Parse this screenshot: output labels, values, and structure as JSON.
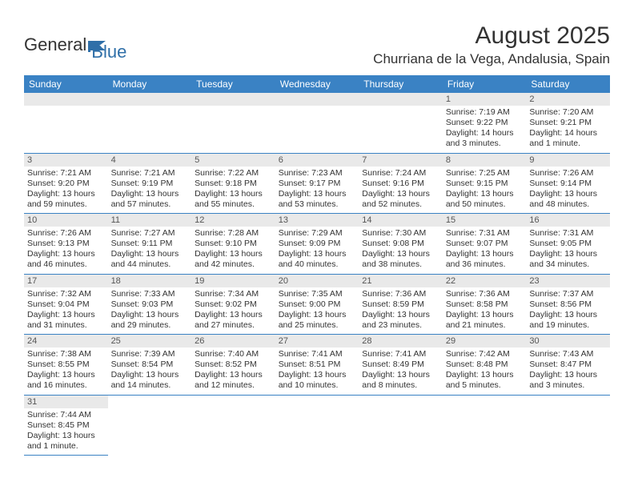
{
  "brand": {
    "name_part1": "General",
    "name_part2": "Blue"
  },
  "title": "August 2025",
  "location": "Churriana de la Vega, Andalusia, Spain",
  "colors": {
    "header_bg": "#3a82c4",
    "header_text": "#ffffff",
    "daynum_bg": "#e9e9e9",
    "border": "#3a82c4",
    "body_text": "#333333",
    "logo_blue": "#2f6fa8"
  },
  "typography": {
    "title_fontsize": 30,
    "location_fontsize": 17,
    "dow_fontsize": 12,
    "cell_fontsize": 10.5
  },
  "days_of_week": [
    "Sunday",
    "Monday",
    "Tuesday",
    "Wednesday",
    "Thursday",
    "Friday",
    "Saturday"
  ],
  "grid": {
    "leading_blanks": 5,
    "days": [
      {
        "n": 1,
        "sunrise": "7:19 AM",
        "sunset": "9:22 PM",
        "daylight": "14 hours and 3 minutes."
      },
      {
        "n": 2,
        "sunrise": "7:20 AM",
        "sunset": "9:21 PM",
        "daylight": "14 hours and 1 minute."
      },
      {
        "n": 3,
        "sunrise": "7:21 AM",
        "sunset": "9:20 PM",
        "daylight": "13 hours and 59 minutes."
      },
      {
        "n": 4,
        "sunrise": "7:21 AM",
        "sunset": "9:19 PM",
        "daylight": "13 hours and 57 minutes."
      },
      {
        "n": 5,
        "sunrise": "7:22 AM",
        "sunset": "9:18 PM",
        "daylight": "13 hours and 55 minutes."
      },
      {
        "n": 6,
        "sunrise": "7:23 AM",
        "sunset": "9:17 PM",
        "daylight": "13 hours and 53 minutes."
      },
      {
        "n": 7,
        "sunrise": "7:24 AM",
        "sunset": "9:16 PM",
        "daylight": "13 hours and 52 minutes."
      },
      {
        "n": 8,
        "sunrise": "7:25 AM",
        "sunset": "9:15 PM",
        "daylight": "13 hours and 50 minutes."
      },
      {
        "n": 9,
        "sunrise": "7:26 AM",
        "sunset": "9:14 PM",
        "daylight": "13 hours and 48 minutes."
      },
      {
        "n": 10,
        "sunrise": "7:26 AM",
        "sunset": "9:13 PM",
        "daylight": "13 hours and 46 minutes."
      },
      {
        "n": 11,
        "sunrise": "7:27 AM",
        "sunset": "9:11 PM",
        "daylight": "13 hours and 44 minutes."
      },
      {
        "n": 12,
        "sunrise": "7:28 AM",
        "sunset": "9:10 PM",
        "daylight": "13 hours and 42 minutes."
      },
      {
        "n": 13,
        "sunrise": "7:29 AM",
        "sunset": "9:09 PM",
        "daylight": "13 hours and 40 minutes."
      },
      {
        "n": 14,
        "sunrise": "7:30 AM",
        "sunset": "9:08 PM",
        "daylight": "13 hours and 38 minutes."
      },
      {
        "n": 15,
        "sunrise": "7:31 AM",
        "sunset": "9:07 PM",
        "daylight": "13 hours and 36 minutes."
      },
      {
        "n": 16,
        "sunrise": "7:31 AM",
        "sunset": "9:05 PM",
        "daylight": "13 hours and 34 minutes."
      },
      {
        "n": 17,
        "sunrise": "7:32 AM",
        "sunset": "9:04 PM",
        "daylight": "13 hours and 31 minutes."
      },
      {
        "n": 18,
        "sunrise": "7:33 AM",
        "sunset": "9:03 PM",
        "daylight": "13 hours and 29 minutes."
      },
      {
        "n": 19,
        "sunrise": "7:34 AM",
        "sunset": "9:02 PM",
        "daylight": "13 hours and 27 minutes."
      },
      {
        "n": 20,
        "sunrise": "7:35 AM",
        "sunset": "9:00 PM",
        "daylight": "13 hours and 25 minutes."
      },
      {
        "n": 21,
        "sunrise": "7:36 AM",
        "sunset": "8:59 PM",
        "daylight": "13 hours and 23 minutes."
      },
      {
        "n": 22,
        "sunrise": "7:36 AM",
        "sunset": "8:58 PM",
        "daylight": "13 hours and 21 minutes."
      },
      {
        "n": 23,
        "sunrise": "7:37 AM",
        "sunset": "8:56 PM",
        "daylight": "13 hours and 19 minutes."
      },
      {
        "n": 24,
        "sunrise": "7:38 AM",
        "sunset": "8:55 PM",
        "daylight": "13 hours and 16 minutes."
      },
      {
        "n": 25,
        "sunrise": "7:39 AM",
        "sunset": "8:54 PM",
        "daylight": "13 hours and 14 minutes."
      },
      {
        "n": 26,
        "sunrise": "7:40 AM",
        "sunset": "8:52 PM",
        "daylight": "13 hours and 12 minutes."
      },
      {
        "n": 27,
        "sunrise": "7:41 AM",
        "sunset": "8:51 PM",
        "daylight": "13 hours and 10 minutes."
      },
      {
        "n": 28,
        "sunrise": "7:41 AM",
        "sunset": "8:49 PM",
        "daylight": "13 hours and 8 minutes."
      },
      {
        "n": 29,
        "sunrise": "7:42 AM",
        "sunset": "8:48 PM",
        "daylight": "13 hours and 5 minutes."
      },
      {
        "n": 30,
        "sunrise": "7:43 AM",
        "sunset": "8:47 PM",
        "daylight": "13 hours and 3 minutes."
      },
      {
        "n": 31,
        "sunrise": "7:44 AM",
        "sunset": "8:45 PM",
        "daylight": "13 hours and 1 minute."
      }
    ]
  },
  "labels": {
    "sunrise": "Sunrise:",
    "sunset": "Sunset:",
    "daylight": "Daylight:"
  }
}
